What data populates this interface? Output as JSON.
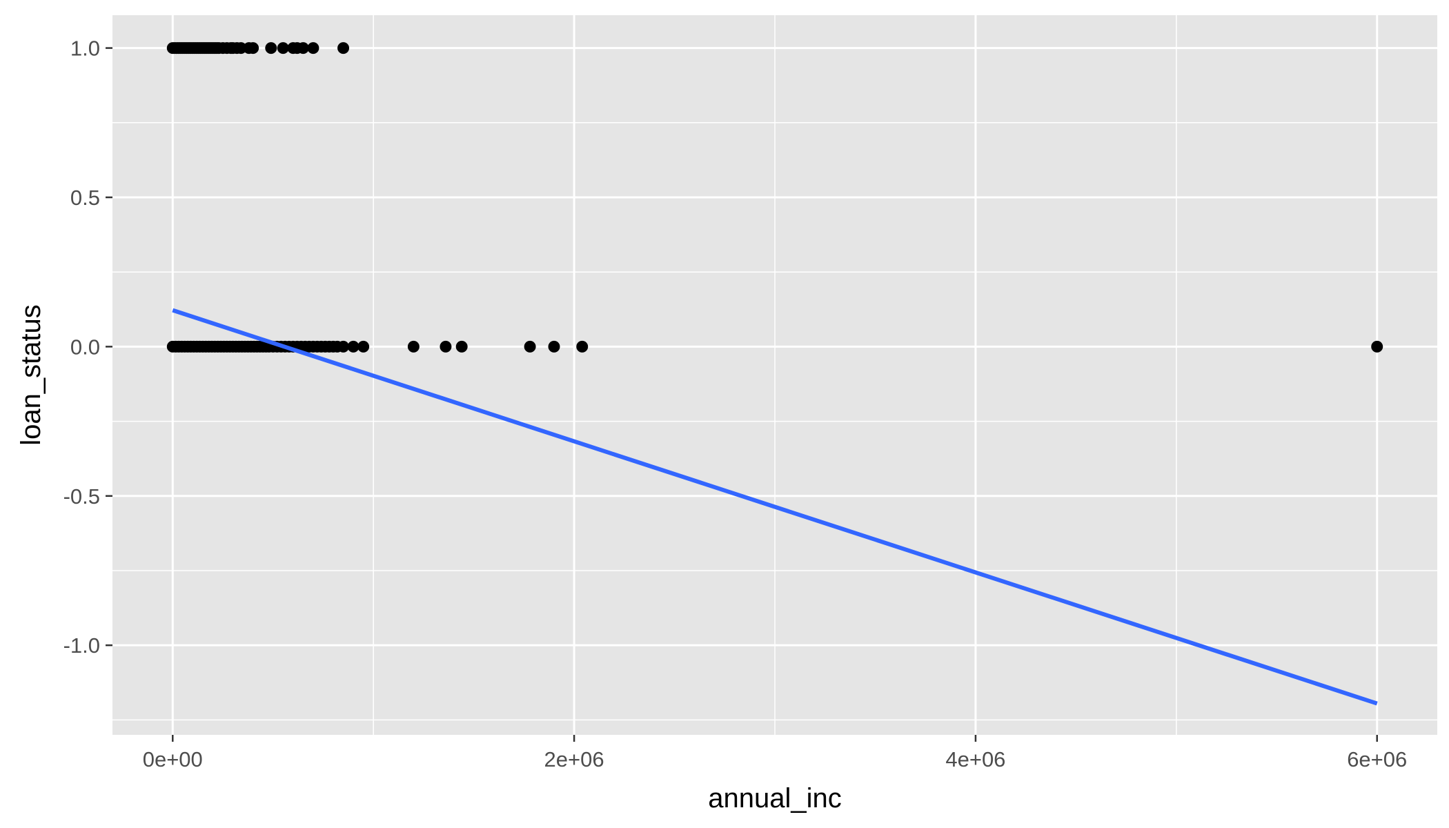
{
  "chart_data": {
    "type": "scatter",
    "title": "",
    "xlabel": "annual_inc",
    "ylabel": "loan_status",
    "xlim": [
      -300000,
      6300000
    ],
    "ylim": [
      -1.3,
      1.11
    ],
    "x_ticks": [
      0,
      2000000,
      4000000,
      6000000
    ],
    "x_tick_labels": [
      "0e+00",
      "2e+06",
      "4e+06",
      "6e+06"
    ],
    "y_ticks": [
      -1.0,
      -0.5,
      0.0,
      0.5,
      1.0
    ],
    "y_tick_labels": [
      "-1.0",
      "-0.5",
      "0.0",
      "0.5",
      "1.0"
    ],
    "grid": true,
    "legend": "none",
    "colors": {
      "panel_background": "#e5e5e5",
      "grid_line": "#ffffff",
      "point": "#000000",
      "fit_line": "#3366ff"
    },
    "points": [
      {
        "x": 0,
        "y": 1
      },
      {
        "x": 10000,
        "y": 1
      },
      {
        "x": 20000,
        "y": 1
      },
      {
        "x": 30000,
        "y": 1
      },
      {
        "x": 40000,
        "y": 1
      },
      {
        "x": 50000,
        "y": 1
      },
      {
        "x": 60000,
        "y": 1
      },
      {
        "x": 70000,
        "y": 1
      },
      {
        "x": 80000,
        "y": 1
      },
      {
        "x": 90000,
        "y": 1
      },
      {
        "x": 100000,
        "y": 1
      },
      {
        "x": 110000,
        "y": 1
      },
      {
        "x": 120000,
        "y": 1
      },
      {
        "x": 130000,
        "y": 1
      },
      {
        "x": 140000,
        "y": 1
      },
      {
        "x": 150000,
        "y": 1
      },
      {
        "x": 160000,
        "y": 1
      },
      {
        "x": 170000,
        "y": 1
      },
      {
        "x": 180000,
        "y": 1
      },
      {
        "x": 190000,
        "y": 1
      },
      {
        "x": 200000,
        "y": 1
      },
      {
        "x": 210000,
        "y": 1
      },
      {
        "x": 220000,
        "y": 1
      },
      {
        "x": 230000,
        "y": 1
      },
      {
        "x": 250000,
        "y": 1
      },
      {
        "x": 270000,
        "y": 1
      },
      {
        "x": 290000,
        "y": 1
      },
      {
        "x": 300000,
        "y": 1
      },
      {
        "x": 320000,
        "y": 1
      },
      {
        "x": 340000,
        "y": 1
      },
      {
        "x": 380000,
        "y": 1
      },
      {
        "x": 400000,
        "y": 1
      },
      {
        "x": 490000,
        "y": 1
      },
      {
        "x": 550000,
        "y": 1
      },
      {
        "x": 600000,
        "y": 1
      },
      {
        "x": 620000,
        "y": 1
      },
      {
        "x": 650000,
        "y": 1
      },
      {
        "x": 700000,
        "y": 1
      },
      {
        "x": 850000,
        "y": 1
      },
      {
        "x": 0,
        "y": 0
      },
      {
        "x": 15000,
        "y": 0
      },
      {
        "x": 30000,
        "y": 0
      },
      {
        "x": 45000,
        "y": 0
      },
      {
        "x": 60000,
        "y": 0
      },
      {
        "x": 75000,
        "y": 0
      },
      {
        "x": 90000,
        "y": 0
      },
      {
        "x": 105000,
        "y": 0
      },
      {
        "x": 120000,
        "y": 0
      },
      {
        "x": 135000,
        "y": 0
      },
      {
        "x": 150000,
        "y": 0
      },
      {
        "x": 165000,
        "y": 0
      },
      {
        "x": 180000,
        "y": 0
      },
      {
        "x": 195000,
        "y": 0
      },
      {
        "x": 210000,
        "y": 0
      },
      {
        "x": 225000,
        "y": 0
      },
      {
        "x": 240000,
        "y": 0
      },
      {
        "x": 255000,
        "y": 0
      },
      {
        "x": 270000,
        "y": 0
      },
      {
        "x": 285000,
        "y": 0
      },
      {
        "x": 300000,
        "y": 0
      },
      {
        "x": 315000,
        "y": 0
      },
      {
        "x": 330000,
        "y": 0
      },
      {
        "x": 345000,
        "y": 0
      },
      {
        "x": 360000,
        "y": 0
      },
      {
        "x": 375000,
        "y": 0
      },
      {
        "x": 390000,
        "y": 0
      },
      {
        "x": 405000,
        "y": 0
      },
      {
        "x": 420000,
        "y": 0
      },
      {
        "x": 435000,
        "y": 0
      },
      {
        "x": 450000,
        "y": 0
      },
      {
        "x": 465000,
        "y": 0
      },
      {
        "x": 480000,
        "y": 0
      },
      {
        "x": 500000,
        "y": 0
      },
      {
        "x": 520000,
        "y": 0
      },
      {
        "x": 540000,
        "y": 0
      },
      {
        "x": 560000,
        "y": 0
      },
      {
        "x": 580000,
        "y": 0
      },
      {
        "x": 600000,
        "y": 0
      },
      {
        "x": 620000,
        "y": 0
      },
      {
        "x": 640000,
        "y": 0
      },
      {
        "x": 660000,
        "y": 0
      },
      {
        "x": 680000,
        "y": 0
      },
      {
        "x": 700000,
        "y": 0
      },
      {
        "x": 720000,
        "y": 0
      },
      {
        "x": 740000,
        "y": 0
      },
      {
        "x": 760000,
        "y": 0
      },
      {
        "x": 780000,
        "y": 0
      },
      {
        "x": 800000,
        "y": 0
      },
      {
        "x": 820000,
        "y": 0
      },
      {
        "x": 850000,
        "y": 0
      },
      {
        "x": 900000,
        "y": 0
      },
      {
        "x": 950000,
        "y": 0
      },
      {
        "x": 1200000,
        "y": 0
      },
      {
        "x": 1360000,
        "y": 0
      },
      {
        "x": 1440000,
        "y": 0
      },
      {
        "x": 1780000,
        "y": 0
      },
      {
        "x": 1900000,
        "y": 0
      },
      {
        "x": 2040000,
        "y": 0
      },
      {
        "x": 6000000,
        "y": 0
      }
    ],
    "fit_line": {
      "x": [
        0,
        6000000
      ],
      "y": [
        0.122,
        -1.195
      ]
    }
  }
}
